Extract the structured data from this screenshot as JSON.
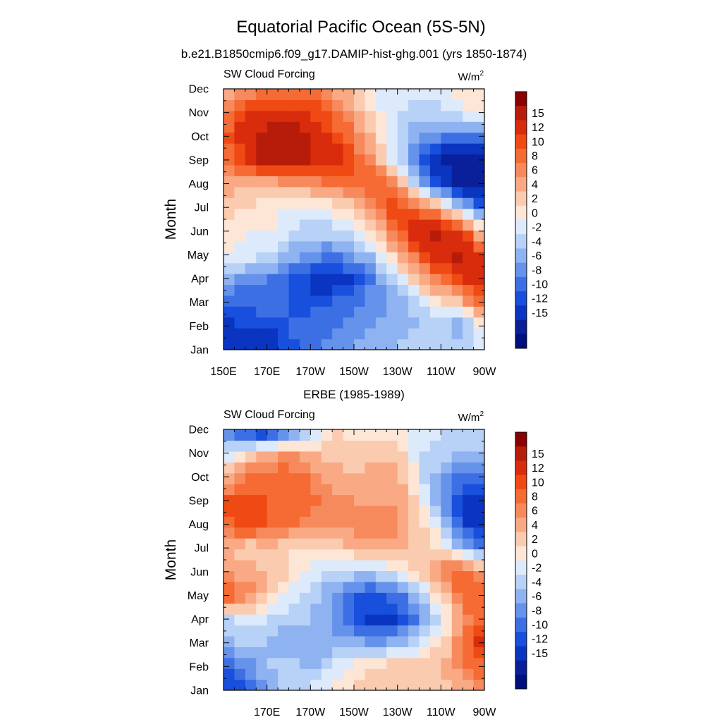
{
  "main_title": "Equatorial Pacific Ocean (5S-5N)",
  "colorbar": {
    "labels": [
      "15",
      "12",
      "10",
      "8",
      "6",
      "4",
      "2",
      "0",
      "-2",
      "-4",
      "-6",
      "-8",
      "-10",
      "-12",
      "-15"
    ],
    "colors": [
      "#8b0000",
      "#b71c0b",
      "#d92c0d",
      "#f04a14",
      "#f56b33",
      "#f78a5c",
      "#f9aa85",
      "#fbcbb0",
      "#fde6d6",
      "#dceafb",
      "#b7d1f7",
      "#8fb3f1",
      "#6592ea",
      "#3d6fe4",
      "#184fdc",
      "#0a35c0",
      "#0a209a",
      "#000f7e"
    ]
  },
  "chart_data": [
    {
      "type": "heatmap",
      "title": "b.e21.B1850cmip6.f09_g17.DAMIP-hist-ghg.001 (yrs 1850-1874)",
      "left_label": "SW Cloud Forcing",
      "units_label": "W/m",
      "units_sup": "2",
      "ylabel": "Month",
      "xlabel": "",
      "x_tick_labels": [
        "150E",
        "170E",
        "170W",
        "150W",
        "130W",
        "110W",
        "90W"
      ],
      "x_tick_lons": [
        150,
        170,
        190,
        210,
        230,
        250,
        270
      ],
      "xlim": [
        150,
        270
      ],
      "y_tick_labels": [
        "Jan",
        "Feb",
        "Mar",
        "Apr",
        "May",
        "Jun",
        "Jul",
        "Aug",
        "Sep",
        "Oct",
        "Nov",
        "Dec"
      ],
      "ylim": [
        1,
        12
      ],
      "x": [
        150,
        160,
        170,
        180,
        190,
        200,
        210,
        220,
        230,
        240,
        250,
        260,
        270
      ],
      "y": [
        1,
        2,
        3,
        4,
        5,
        6,
        7,
        8,
        9,
        10,
        11,
        12
      ],
      "z": [
        [
          -14,
          -13,
          -16,
          -11,
          -9,
          -7,
          -6,
          -5,
          -4,
          -3,
          -2,
          -3,
          -1
        ],
        [
          -13,
          -12,
          -12,
          -10,
          -9,
          -8,
          -7,
          -6,
          -5,
          -4,
          -4,
          -6,
          2
        ],
        [
          -9,
          -10,
          -8,
          -10,
          -11,
          -10,
          -9,
          -7,
          -5,
          -2,
          1,
          4,
          11
        ],
        [
          -5,
          -7,
          -8,
          -9,
          -13,
          -14,
          -12,
          -7,
          -2,
          4,
          9,
          12,
          14
        ],
        [
          1,
          -1,
          -2,
          -5,
          -7,
          -8,
          -6,
          -3,
          4,
          10,
          14,
          16,
          12
        ],
        [
          2,
          0,
          0,
          -1,
          -3,
          -3,
          -1,
          3,
          10,
          14,
          16,
          12,
          1
        ],
        [
          3,
          2,
          1,
          0,
          -1,
          1,
          3,
          8,
          12,
          9,
          4,
          -4,
          -10
        ],
        [
          5,
          4,
          4,
          5,
          6,
          8,
          9,
          10,
          6,
          -4,
          -12,
          -16,
          -17
        ],
        [
          8,
          12,
          17,
          17,
          15,
          14,
          10,
          6,
          -2,
          -10,
          -16,
          -18,
          -17
        ],
        [
          10,
          14,
          17,
          17,
          16,
          12,
          8,
          3,
          -2,
          -6,
          -8,
          -8,
          -10
        ],
        [
          7,
          12,
          13,
          13,
          12,
          9,
          6,
          1,
          -2,
          -3,
          -3,
          -1,
          2
        ],
        [
          4,
          6,
          8,
          8,
          9,
          6,
          3,
          -1,
          -1,
          -1,
          -1,
          1,
          1
        ]
      ]
    },
    {
      "type": "heatmap",
      "title": "ERBE (1985-1989)",
      "left_label": "SW Cloud Forcing",
      "units_label": "W/m",
      "units_sup": "2",
      "ylabel": "Month",
      "xlabel": "",
      "x_tick_labels": [
        "170E",
        "170W",
        "150W",
        "130W",
        "110W",
        "90W"
      ],
      "x_tick_lons": [
        170,
        190,
        210,
        230,
        250,
        270
      ],
      "xlim": [
        150,
        270
      ],
      "y_tick_labels": [
        "Jan",
        "Feb",
        "Mar",
        "Apr",
        "May",
        "Jun",
        "Jul",
        "Aug",
        "Sep",
        "Oct",
        "Nov",
        "Dec"
      ],
      "ylim": [
        1,
        12
      ],
      "x": [
        150,
        160,
        170,
        180,
        190,
        200,
        210,
        220,
        230,
        240,
        250,
        260,
        270
      ],
      "y": [
        1,
        2,
        3,
        4,
        5,
        6,
        7,
        8,
        9,
        10,
        11,
        12
      ],
      "z": [
        [
          -12,
          -10,
          -6,
          -3,
          -1,
          1,
          2,
          3,
          3,
          2,
          3,
          5,
          6
        ],
        [
          -10,
          -8,
          -4,
          -2,
          -5,
          -2,
          1,
          2,
          4,
          3,
          4,
          7,
          10
        ],
        [
          -6,
          -3,
          -4,
          -6,
          -5,
          -6,
          -5,
          -6,
          -5,
          -2,
          2,
          8,
          14
        ],
        [
          -3,
          -1,
          -2,
          -3,
          -4,
          -6,
          -10,
          -13,
          -12,
          -7,
          -2,
          6,
          10
        ],
        [
          10,
          8,
          3,
          -1,
          -3,
          -6,
          -10,
          -11,
          -9,
          -4,
          2,
          10,
          9
        ],
        [
          6,
          5,
          4,
          3,
          -1,
          -2,
          -3,
          -3,
          -1,
          3,
          8,
          11,
          6
        ],
        [
          4,
          2,
          3,
          2,
          1,
          3,
          4,
          5,
          4,
          3,
          1,
          -4,
          -8
        ],
        [
          9,
          12,
          10,
          9,
          6,
          6,
          7,
          8,
          7,
          3,
          -2,
          -12,
          -14
        ],
        [
          10,
          12,
          10,
          10,
          9,
          7,
          6,
          6,
          6,
          2,
          -6,
          -13,
          -13
        ],
        [
          3,
          8,
          9,
          10,
          8,
          5,
          4,
          5,
          5,
          -1,
          -6,
          -9,
          -10
        ],
        [
          -2,
          2,
          5,
          6,
          4,
          3,
          3,
          3,
          3,
          -2,
          -3,
          -4,
          -5
        ],
        [
          -6,
          -13,
          -15,
          -11,
          -4,
          2,
          1,
          1,
          1,
          -1,
          -2,
          -3,
          -2
        ]
      ]
    }
  ]
}
